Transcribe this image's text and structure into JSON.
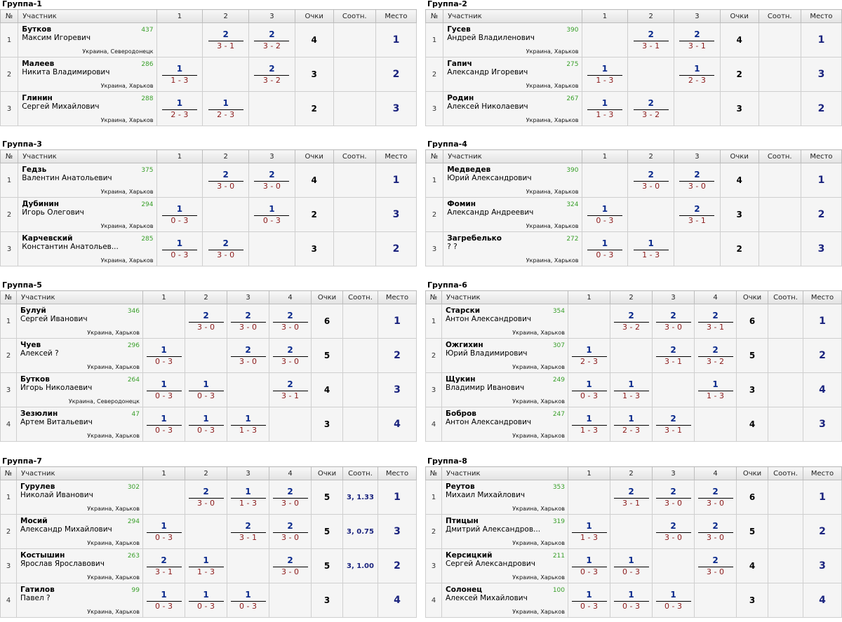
{
  "headers": {
    "no": "№",
    "player": "Участник",
    "points": "Очки",
    "ratio": "Соотн.",
    "place": "Место"
  },
  "groups": [
    {
      "title": "Группа-1",
      "cols": [
        "1",
        "2",
        "3"
      ],
      "rows": [
        {
          "no": "1",
          "surname": "Бутков",
          "name": "Максим Игоревич",
          "rating": "437",
          "city": "Украина, Северодонецк",
          "results": [
            null,
            {
              "w": "2",
              "s": "3 - 1"
            },
            {
              "w": "2",
              "s": "3 - 2"
            }
          ],
          "points": "4",
          "ratio": "",
          "place": "1"
        },
        {
          "no": "2",
          "surname": "Малеев",
          "name": "Никита Владимирович",
          "rating": "286",
          "city": "Украина, Харьков",
          "results": [
            {
              "w": "1",
              "s": "1 - 3"
            },
            null,
            {
              "w": "2",
              "s": "3 - 2"
            }
          ],
          "points": "3",
          "ratio": "",
          "place": "2"
        },
        {
          "no": "3",
          "surname": "Глинин",
          "name": "Сергей Михайлович",
          "rating": "288",
          "city": "Украина, Харьков",
          "results": [
            {
              "w": "1",
              "s": "2 - 3"
            },
            {
              "w": "1",
              "s": "2 - 3"
            },
            null
          ],
          "points": "2",
          "ratio": "",
          "place": "3"
        }
      ]
    },
    {
      "title": "Группа-2",
      "cols": [
        "1",
        "2",
        "3"
      ],
      "rows": [
        {
          "no": "1",
          "surname": "Гусев",
          "name": "Андрей Владиленович",
          "rating": "390",
          "city": "Украина, Харьков",
          "results": [
            null,
            {
              "w": "2",
              "s": "3 - 1"
            },
            {
              "w": "2",
              "s": "3 - 1"
            }
          ],
          "points": "4",
          "ratio": "",
          "place": "1"
        },
        {
          "no": "2",
          "surname": "Гапич",
          "name": "Александр Игоревич",
          "rating": "275",
          "city": "Украина, Харьков",
          "results": [
            {
              "w": "1",
              "s": "1 - 3"
            },
            null,
            {
              "w": "1",
              "s": "2 - 3"
            }
          ],
          "points": "2",
          "ratio": "",
          "place": "3"
        },
        {
          "no": "3",
          "surname": "Родин",
          "name": "Алексей Николаевич",
          "rating": "267",
          "city": "Украина, Харьков",
          "results": [
            {
              "w": "1",
              "s": "1 - 3"
            },
            {
              "w": "2",
              "s": "3 - 2"
            },
            null
          ],
          "points": "3",
          "ratio": "",
          "place": "2"
        }
      ]
    },
    {
      "title": "Группа-3",
      "cols": [
        "1",
        "2",
        "3"
      ],
      "rows": [
        {
          "no": "1",
          "surname": "Гедзь",
          "name": "Валентин Анатольевич",
          "rating": "375",
          "city": "Украина, Харьков",
          "results": [
            null,
            {
              "w": "2",
              "s": "3 - 0"
            },
            {
              "w": "2",
              "s": "3 - 0"
            }
          ],
          "points": "4",
          "ratio": "",
          "place": "1"
        },
        {
          "no": "2",
          "surname": "Дубинин",
          "name": "Игорь Олегович",
          "rating": "294",
          "city": "Украина, Харьков",
          "results": [
            {
              "w": "1",
              "s": "0 - 3"
            },
            null,
            {
              "w": "1",
              "s": "0 - 3"
            }
          ],
          "points": "2",
          "ratio": "",
          "place": "3"
        },
        {
          "no": "3",
          "surname": "Карчевский",
          "name": "Константин Анатольев...",
          "rating": "285",
          "city": "Украина, Харьков",
          "results": [
            {
              "w": "1",
              "s": "0 - 3"
            },
            {
              "w": "2",
              "s": "3 - 0"
            },
            null
          ],
          "points": "3",
          "ratio": "",
          "place": "2"
        }
      ]
    },
    {
      "title": "Группа-4",
      "cols": [
        "1",
        "2",
        "3"
      ],
      "rows": [
        {
          "no": "1",
          "surname": "Медведев",
          "name": "Юрий Александрович",
          "rating": "390",
          "city": "Украина, Харьков",
          "results": [
            null,
            {
              "w": "2",
              "s": "3 - 0"
            },
            {
              "w": "2",
              "s": "3 - 0"
            }
          ],
          "points": "4",
          "ratio": "",
          "place": "1"
        },
        {
          "no": "2",
          "surname": "Фомин",
          "name": "Александр Андреевич",
          "rating": "324",
          "city": "Украина, Харьков",
          "results": [
            {
              "w": "1",
              "s": "0 - 3"
            },
            null,
            {
              "w": "2",
              "s": "3 - 1"
            }
          ],
          "points": "3",
          "ratio": "",
          "place": "2"
        },
        {
          "no": "3",
          "surname": "Загребелько",
          "name": "? ?",
          "rating": "272",
          "city": "Украина, Харьков",
          "results": [
            {
              "w": "1",
              "s": "0 - 3"
            },
            {
              "w": "1",
              "s": "1 - 3"
            },
            null
          ],
          "points": "2",
          "ratio": "",
          "place": "3"
        }
      ]
    },
    {
      "title": "Группа-5",
      "cols": [
        "1",
        "2",
        "3",
        "4"
      ],
      "rows": [
        {
          "no": "1",
          "surname": "Булуй",
          "name": "Сергей Иванович",
          "rating": "346",
          "city": "Украина, Харьков",
          "results": [
            null,
            {
              "w": "2",
              "s": "3 - 0"
            },
            {
              "w": "2",
              "s": "3 - 0"
            },
            {
              "w": "2",
              "s": "3 - 0"
            }
          ],
          "points": "6",
          "ratio": "",
          "place": "1"
        },
        {
          "no": "2",
          "surname": "Чуев",
          "name": "Алексей ?",
          "rating": "296",
          "city": "Украина, Харьков",
          "results": [
            {
              "w": "1",
              "s": "0 - 3"
            },
            null,
            {
              "w": "2",
              "s": "3 - 0"
            },
            {
              "w": "2",
              "s": "3 - 0"
            }
          ],
          "points": "5",
          "ratio": "",
          "place": "2"
        },
        {
          "no": "3",
          "surname": "Бутков",
          "name": "Игорь Николаевич",
          "rating": "264",
          "city": "Украина, Северодонецк",
          "results": [
            {
              "w": "1",
              "s": "0 - 3"
            },
            {
              "w": "1",
              "s": "0 - 3"
            },
            null,
            {
              "w": "2",
              "s": "3 - 1"
            }
          ],
          "points": "4",
          "ratio": "",
          "place": "3"
        },
        {
          "no": "4",
          "surname": "Зезюлин",
          "name": "Артем Витальевич",
          "rating": "47",
          "city": "Украина, Харьков",
          "results": [
            {
              "w": "1",
              "s": "0 - 3"
            },
            {
              "w": "1",
              "s": "0 - 3"
            },
            {
              "w": "1",
              "s": "1 - 3"
            },
            null
          ],
          "points": "3",
          "ratio": "",
          "place": "4"
        }
      ]
    },
    {
      "title": "Группа-6",
      "cols": [
        "1",
        "2",
        "3",
        "4"
      ],
      "rows": [
        {
          "no": "1",
          "surname": "Старски",
          "name": "Антон Александрович",
          "rating": "354",
          "city": "Украина, Харьков",
          "results": [
            null,
            {
              "w": "2",
              "s": "3 - 2"
            },
            {
              "w": "2",
              "s": "3 - 0"
            },
            {
              "w": "2",
              "s": "3 - 1"
            }
          ],
          "points": "6",
          "ratio": "",
          "place": "1"
        },
        {
          "no": "2",
          "surname": "Ожгихин",
          "name": "Юрий Владимирович",
          "rating": "307",
          "city": "Украина, Харьков",
          "results": [
            {
              "w": "1",
              "s": "2 - 3"
            },
            null,
            {
              "w": "2",
              "s": "3 - 1"
            },
            {
              "w": "2",
              "s": "3 - 2"
            }
          ],
          "points": "5",
          "ratio": "",
          "place": "2"
        },
        {
          "no": "3",
          "surname": "Щукин",
          "name": "Владимир Иванович",
          "rating": "249",
          "city": "Украина, Харьков",
          "results": [
            {
              "w": "1",
              "s": "0 - 3"
            },
            {
              "w": "1",
              "s": "1 - 3"
            },
            null,
            {
              "w": "1",
              "s": "1 - 3"
            }
          ],
          "points": "3",
          "ratio": "",
          "place": "4"
        },
        {
          "no": "4",
          "surname": "Бобров",
          "name": "Антон Александрович",
          "rating": "247",
          "city": "Украина, Харьков",
          "results": [
            {
              "w": "1",
              "s": "1 - 3"
            },
            {
              "w": "1",
              "s": "2 - 3"
            },
            {
              "w": "2",
              "s": "3 - 1"
            },
            null
          ],
          "points": "4",
          "ratio": "",
          "place": "3"
        }
      ]
    },
    {
      "title": "Группа-7",
      "cols": [
        "1",
        "2",
        "3",
        "4"
      ],
      "rows": [
        {
          "no": "1",
          "surname": "Гурулев",
          "name": "Николай Иванович",
          "rating": "302",
          "city": "Украина, Харьков",
          "results": [
            null,
            {
              "w": "2",
              "s": "3 - 0"
            },
            {
              "w": "1",
              "s": "1 - 3"
            },
            {
              "w": "2",
              "s": "3 - 0"
            }
          ],
          "points": "5",
          "ratio": "3, 1.33",
          "place": "1"
        },
        {
          "no": "2",
          "surname": "Мосий",
          "name": "Александр Михайлович",
          "rating": "294",
          "city": "Украина, Харьков",
          "results": [
            {
              "w": "1",
              "s": "0 - 3"
            },
            null,
            {
              "w": "2",
              "s": "3 - 1"
            },
            {
              "w": "2",
              "s": "3 - 0"
            }
          ],
          "points": "5",
          "ratio": "3, 0.75",
          "place": "3"
        },
        {
          "no": "3",
          "surname": "Костышин",
          "name": "Ярослав Ярославович",
          "rating": "263",
          "city": "Украина, Харьков",
          "results": [
            {
              "w": "2",
              "s": "3 - 1"
            },
            {
              "w": "1",
              "s": "1 - 3"
            },
            null,
            {
              "w": "2",
              "s": "3 - 0"
            }
          ],
          "points": "5",
          "ratio": "3, 1.00",
          "place": "2"
        },
        {
          "no": "4",
          "surname": "Гатилов",
          "name": "Павел ?",
          "rating": "99",
          "city": "Украина, Харьков",
          "results": [
            {
              "w": "1",
              "s": "0 - 3"
            },
            {
              "w": "1",
              "s": "0 - 3"
            },
            {
              "w": "1",
              "s": "0 - 3"
            },
            null
          ],
          "points": "3",
          "ratio": "",
          "place": "4"
        }
      ]
    },
    {
      "title": "Группа-8",
      "cols": [
        "1",
        "2",
        "3",
        "4"
      ],
      "rows": [
        {
          "no": "1",
          "surname": "Реутов",
          "name": "Михаил Михайлович",
          "rating": "353",
          "city": "Украина, Харьков",
          "results": [
            null,
            {
              "w": "2",
              "s": "3 - 1"
            },
            {
              "w": "2",
              "s": "3 - 0"
            },
            {
              "w": "2",
              "s": "3 - 0"
            }
          ],
          "points": "6",
          "ratio": "",
          "place": "1"
        },
        {
          "no": "2",
          "surname": "Птицын",
          "name": "Дмитрий Александров...",
          "rating": "319",
          "city": "Украина, Харьков",
          "results": [
            {
              "w": "1",
              "s": "1 - 3"
            },
            null,
            {
              "w": "2",
              "s": "3 - 0"
            },
            {
              "w": "2",
              "s": "3 - 0"
            }
          ],
          "points": "5",
          "ratio": "",
          "place": "2"
        },
        {
          "no": "3",
          "surname": "Керсицкий",
          "name": "Сергей Александрович",
          "rating": "211",
          "city": "Украина, Харьков",
          "results": [
            {
              "w": "1",
              "s": "0 - 3"
            },
            {
              "w": "1",
              "s": "0 - 3"
            },
            null,
            {
              "w": "2",
              "s": "3 - 0"
            }
          ],
          "points": "4",
          "ratio": "",
          "place": "3"
        },
        {
          "no": "4",
          "surname": "Солонец",
          "name": "Алексей Михайлович",
          "rating": "100",
          "city": "Украина, Харьков",
          "results": [
            {
              "w": "1",
              "s": "0 - 3"
            },
            {
              "w": "1",
              "s": "0 - 3"
            },
            {
              "w": "1",
              "s": "0 - 3"
            },
            null
          ],
          "points": "3",
          "ratio": "",
          "place": "4"
        }
      ]
    }
  ]
}
